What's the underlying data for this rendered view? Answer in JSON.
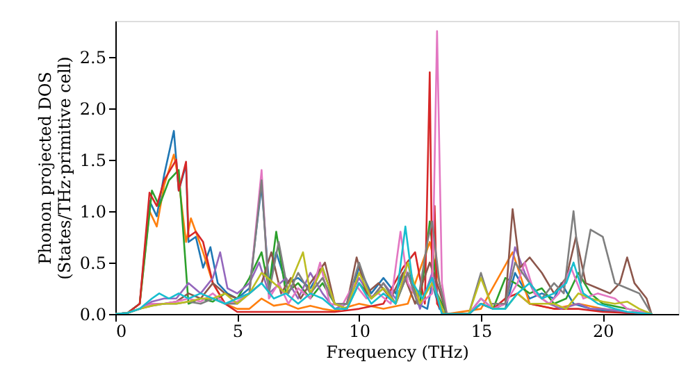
{
  "chart_data": {
    "type": "line",
    "xlabel": "Frequency (THz)",
    "ylabel": "Phonon projected DOS\n(States/THz·primitive cell)",
    "xlim": [
      0,
      23.1
    ],
    "ylim": [
      0,
      2.85
    ],
    "xticks": [
      0,
      5,
      10,
      15,
      20
    ],
    "yticks": [
      {
        "value": 0,
        "label": "0.0"
      },
      0.5,
      {
        "value": 1,
        "label": "1.0"
      },
      1.5,
      {
        "value": 2,
        "label": "2.0"
      },
      2.5
    ],
    "grid": false,
    "legend": false,
    "line_style": "solid",
    "marker": "none",
    "series": [
      {
        "color": "#1f77b4",
        "x": [
          0,
          0.5,
          1,
          1.4,
          1.7,
          2.0,
          2.4,
          2.6,
          2.9,
          3.0,
          3.3,
          3.6,
          3.9,
          4.2,
          4.6,
          5.0,
          5.5,
          6.0,
          6.3,
          6.6,
          7.0,
          7.5,
          8.0,
          8.5,
          9.0,
          9.5,
          10.0,
          10.5,
          11.0,
          11.5,
          12.0,
          12.4,
          12.8,
          13.0,
          13.3,
          13.6,
          14.5,
          15.0,
          15.5,
          16.0,
          16.4,
          17.0,
          17.5,
          18.0,
          18.3,
          18.8,
          19.5,
          20.5,
          21.5,
          22.0
        ],
        "values": [
          0,
          0.01,
          0.1,
          1.1,
          0.95,
          1.35,
          1.78,
          1.2,
          1.45,
          0.7,
          0.75,
          0.45,
          0.65,
          0.3,
          0.2,
          0.15,
          0.25,
          1.25,
          0.3,
          0.6,
          0.3,
          0.35,
          0.25,
          0.45,
          0.1,
          0.1,
          0.45,
          0.2,
          0.35,
          0.2,
          0.5,
          0.1,
          0.05,
          0.3,
          0.05,
          0,
          0,
          0.15,
          0.05,
          0.05,
          0.4,
          0.15,
          0.2,
          0.15,
          0.3,
          0.1,
          0.05,
          0.02,
          0,
          0
        ]
      },
      {
        "color": "#ff7f0e",
        "x": [
          1,
          1.4,
          1.7,
          2.0,
          2.4,
          2.6,
          2.9,
          3.1,
          3.3,
          3.6,
          4.0,
          4.5,
          5.0,
          5.5,
          6.0,
          6.5,
          7.0,
          7.5,
          8.0,
          8.5,
          9.0,
          10.0,
          11.0,
          12.0,
          12.9,
          13.2,
          13.6,
          15.0,
          16.3,
          17.0,
          18.0,
          19.0,
          20.0,
          21.0,
          22.0
        ],
        "values": [
          0.1,
          1.0,
          0.85,
          1.25,
          1.55,
          1.3,
          0.7,
          0.93,
          0.8,
          0.6,
          0.3,
          0.1,
          0.05,
          0.05,
          0.15,
          0.08,
          0.1,
          0.05,
          0.08,
          0.05,
          0.03,
          0.1,
          0.05,
          0.1,
          0.7,
          0.4,
          0,
          0.05,
          0.6,
          0.1,
          0.05,
          0.1,
          0.05,
          0.02,
          0
        ]
      },
      {
        "color": "#2ca02c",
        "x": [
          0,
          0.5,
          1,
          1.5,
          1.8,
          2.2,
          2.6,
          3.0,
          3.5,
          4.0,
          4.5,
          5.0,
          5.5,
          6.0,
          6.3,
          6.6,
          7.0,
          7.5,
          8.0,
          8.5,
          9.0,
          9.5,
          10.0,
          10.5,
          11.0,
          11.5,
          12.0,
          12.5,
          12.9,
          13.2,
          13.6,
          14.5,
          15.0,
          15.5,
          16.0,
          16.4,
          17.0,
          17.5,
          18.0,
          18.5,
          19.0,
          19.5,
          20.0,
          21.0,
          22.0
        ],
        "values": [
          0,
          0.01,
          0.1,
          1.2,
          1.05,
          1.3,
          1.4,
          0.1,
          0.15,
          0.12,
          0.2,
          0.15,
          0.35,
          0.6,
          0.25,
          0.8,
          0.2,
          0.3,
          0.15,
          0.3,
          0.1,
          0.05,
          0.3,
          0.15,
          0.25,
          0.1,
          0.4,
          0.1,
          0.9,
          0.2,
          0,
          0,
          0.1,
          0.05,
          0.35,
          0.3,
          0.2,
          0.25,
          0.1,
          0.15,
          0.4,
          0.2,
          0.1,
          0.05,
          0
        ]
      },
      {
        "color": "#d62728",
        "x": [
          0,
          0.5,
          1,
          1.4,
          1.7,
          2.0,
          2.5,
          2.6,
          2.9,
          3.0,
          3.3,
          3.6,
          4.0,
          4.5,
          5.0,
          6.0,
          7.0,
          8.0,
          9.0,
          10.0,
          11.0,
          11.8,
          12.3,
          12.7,
          12.9,
          13.0,
          13.1,
          13.2,
          13.5,
          14.5,
          15.0,
          15.5,
          16.0,
          16.5,
          17.0,
          18.0,
          19.0,
          20.0,
          21.0,
          22.0
        ],
        "values": [
          0,
          0.01,
          0.1,
          1.18,
          1.05,
          1.3,
          1.5,
          1.2,
          1.48,
          0.75,
          0.8,
          0.7,
          0.3,
          0.1,
          0.02,
          0.02,
          0.02,
          0.02,
          0.02,
          0.05,
          0.1,
          0.45,
          0.6,
          0.1,
          2.35,
          0.3,
          1.05,
          0.1,
          0,
          0,
          0.1,
          0.05,
          0.15,
          0.2,
          0.1,
          0.05,
          0.05,
          0.02,
          0.01,
          0
        ]
      },
      {
        "color": "#9467bd",
        "x": [
          0,
          0.5,
          1,
          1.5,
          2.0,
          2.5,
          3.0,
          3.5,
          4.0,
          4.3,
          4.6,
          5.0,
          5.5,
          5.9,
          6.3,
          7.0,
          7.5,
          8.0,
          8.5,
          9.0,
          9.5,
          10.0,
          10.5,
          11.0,
          11.5,
          12.0,
          12.5,
          13.0,
          13.4,
          14.5,
          15.0,
          15.5,
          16.0,
          16.4,
          16.8,
          17.2,
          17.8,
          18.3,
          19.0,
          19.5,
          20.0,
          21.0,
          22.0
        ],
        "values": [
          0,
          0.01,
          0.05,
          0.12,
          0.15,
          0.15,
          0.3,
          0.2,
          0.35,
          0.6,
          0.25,
          0.2,
          0.3,
          0.5,
          0.2,
          0.35,
          0.15,
          0.4,
          0.2,
          0.05,
          0.1,
          0.35,
          0.15,
          0.3,
          0.15,
          0.4,
          0.05,
          0.4,
          0,
          0,
          0.1,
          0.05,
          0.1,
          0.65,
          0.4,
          0.2,
          0.1,
          0.05,
          0.1,
          0.05,
          0.05,
          0.02,
          0
        ]
      },
      {
        "color": "#8c564b",
        "x": [
          0,
          0.5,
          1,
          1.5,
          2.0,
          2.5,
          3.0,
          3.5,
          4.0,
          4.5,
          5.0,
          5.5,
          6.0,
          6.4,
          6.8,
          7.2,
          7.6,
          8.0,
          8.6,
          9.0,
          9.5,
          9.9,
          10.3,
          10.8,
          11.3,
          11.8,
          12.3,
          12.9,
          13.2,
          13.6,
          14.5,
          15.0,
          15.5,
          16.0,
          16.3,
          16.6,
          17.0,
          17.5,
          18.0,
          18.5,
          18.9,
          19.3,
          19.8,
          20.3,
          20.7,
          21.0,
          21.3,
          21.8,
          22.0
        ],
        "values": [
          0,
          0.01,
          0.05,
          0.1,
          0.1,
          0.12,
          0.2,
          0.15,
          0.3,
          0.2,
          0.15,
          0.2,
          0.3,
          0.6,
          0.2,
          0.35,
          0.15,
          0.3,
          0.5,
          0.1,
          0.1,
          0.55,
          0.2,
          0.3,
          0.15,
          0.4,
          0.1,
          0.5,
          0.3,
          0,
          0,
          0.1,
          0.05,
          0.1,
          1.02,
          0.45,
          0.55,
          0.4,
          0.2,
          0.35,
          0.75,
          0.3,
          0.25,
          0.2,
          0.3,
          0.55,
          0.3,
          0.15,
          0
        ]
      },
      {
        "color": "#e377c2",
        "x": [
          0,
          0.5,
          1,
          1.5,
          2.0,
          2.5,
          3.0,
          3.5,
          4.0,
          4.5,
          5.0,
          5.5,
          6.0,
          6.3,
          6.7,
          7.1,
          7.5,
          8.0,
          8.4,
          8.8,
          9.3,
          9.8,
          10.3,
          10.8,
          11.3,
          11.7,
          12.0,
          12.5,
          13.0,
          13.2,
          13.4,
          13.6,
          14.5,
          15.0,
          15.5,
          16.0,
          16.5,
          16.8,
          17.2,
          17.8,
          18.2,
          18.7,
          19.2,
          19.8,
          20.5,
          21.0,
          22.0
        ],
        "values": [
          0,
          0.01,
          0.05,
          0.1,
          0.1,
          0.12,
          0.15,
          0.12,
          0.2,
          0.1,
          0.12,
          0.2,
          1.4,
          0.15,
          0.3,
          0.1,
          0.25,
          0.15,
          0.5,
          0.1,
          0.08,
          0.3,
          0.15,
          0.2,
          0.1,
          0.8,
          0.3,
          0.1,
          0.2,
          2.75,
          0.3,
          0,
          0,
          0.15,
          0.05,
          0.1,
          0.3,
          0.5,
          0.2,
          0.1,
          0.2,
          0.45,
          0.15,
          0.2,
          0.15,
          0.05,
          0
        ]
      },
      {
        "color": "#7f7f7f",
        "x": [
          0,
          0.5,
          1,
          1.5,
          2.0,
          2.5,
          3.0,
          3.5,
          4.0,
          4.5,
          5.0,
          5.5,
          6.0,
          6.3,
          6.7,
          7.1,
          7.5,
          8.0,
          8.5,
          9.0,
          9.5,
          10.0,
          10.5,
          11.0,
          11.5,
          12.0,
          12.4,
          12.8,
          13.0,
          13.3,
          13.6,
          14.5,
          15.0,
          15.4,
          16.0,
          16.4,
          17.0,
          17.5,
          18.0,
          18.4,
          18.8,
          19.1,
          19.5,
          20.0,
          20.5,
          21.0,
          21.5,
          22.0
        ],
        "values": [
          0,
          0.01,
          0.05,
          0.08,
          0.1,
          0.1,
          0.12,
          0.1,
          0.15,
          0.1,
          0.1,
          0.2,
          1.3,
          0.2,
          0.7,
          0.2,
          0.4,
          0.2,
          0.35,
          0.1,
          0.1,
          0.5,
          0.15,
          0.3,
          0.1,
          0.4,
          0.1,
          0.7,
          0.9,
          0.3,
          0,
          0,
          0.4,
          0.1,
          0.1,
          0.5,
          0.3,
          0.15,
          0.3,
          0.2,
          1.0,
          0.3,
          0.82,
          0.75,
          0.3,
          0.25,
          0.2,
          0
        ]
      },
      {
        "color": "#bcbd22",
        "x": [
          0,
          0.5,
          1,
          1.5,
          2.0,
          2.5,
          3.0,
          3.5,
          4.0,
          4.5,
          5.0,
          5.5,
          6.0,
          6.5,
          7.0,
          7.7,
          8.0,
          8.5,
          9.0,
          9.5,
          10.0,
          10.5,
          11.0,
          11.5,
          12.0,
          12.5,
          13.0,
          13.5,
          14.5,
          15.0,
          15.5,
          16.0,
          16.5,
          17.0,
          18.0,
          18.5,
          19.0,
          19.5,
          20.0,
          20.5,
          21.0,
          21.5,
          22.0
        ],
        "values": [
          0,
          0.01,
          0.05,
          0.08,
          0.1,
          0.1,
          0.12,
          0.15,
          0.15,
          0.2,
          0.1,
          0.2,
          0.4,
          0.3,
          0.2,
          0.6,
          0.2,
          0.45,
          0.1,
          0.05,
          0.4,
          0.15,
          0.25,
          0.1,
          0.5,
          0.1,
          0.3,
          0,
          0,
          0.35,
          0.05,
          0.05,
          0.2,
          0.1,
          0.1,
          0.05,
          0.2,
          0.15,
          0.12,
          0.1,
          0.12,
          0.05,
          0
        ]
      },
      {
        "color": "#17becf",
        "x": [
          0,
          0.5,
          1,
          1.5,
          1.8,
          2.2,
          2.6,
          3.0,
          3.5,
          4.0,
          4.5,
          5.0,
          5.5,
          6.0,
          6.5,
          7.0,
          7.5,
          8.0,
          8.5,
          9.0,
          9.5,
          10.0,
          10.5,
          11.0,
          11.5,
          11.9,
          12.2,
          12.6,
          13.0,
          13.4,
          14.5,
          15.0,
          15.5,
          16.0,
          16.5,
          17.0,
          17.5,
          18.0,
          18.5,
          18.8,
          19.2,
          19.8,
          20.5,
          21.0,
          22.0
        ],
        "values": [
          0,
          0.01,
          0.05,
          0.15,
          0.2,
          0.15,
          0.2,
          0.15,
          0.2,
          0.15,
          0.1,
          0.15,
          0.2,
          0.3,
          0.15,
          0.2,
          0.1,
          0.2,
          0.15,
          0.05,
          0.05,
          0.3,
          0.1,
          0.2,
          0.1,
          0.85,
          0.3,
          0.15,
          0.35,
          0,
          0,
          0.1,
          0.05,
          0.05,
          0.2,
          0.3,
          0.15,
          0.2,
          0.3,
          0.5,
          0.2,
          0.1,
          0.05,
          0.02,
          0
        ]
      }
    ]
  }
}
